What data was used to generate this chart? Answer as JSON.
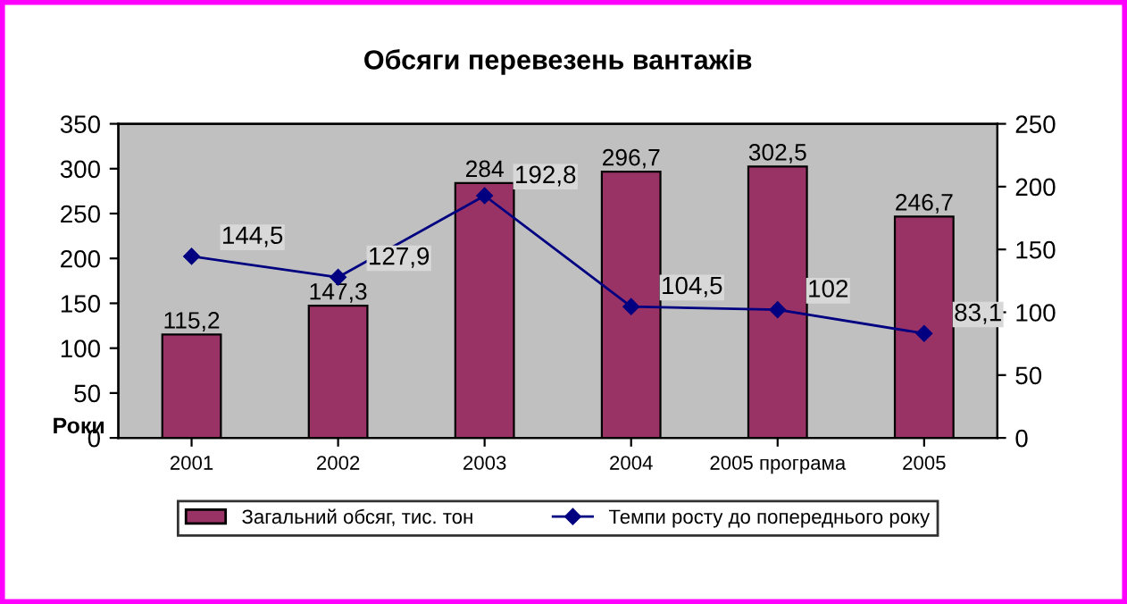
{
  "chart_data": {
    "type": "bar",
    "title": "Обсяги перевезень вантажів",
    "xlabel": "Роки",
    "categories": [
      "2001",
      "2002",
      "2003",
      "2004",
      "2005 програма",
      "2005"
    ],
    "series": [
      {
        "name": "Загальний обсяг, тис. тон",
        "color": "#993366",
        "values": [
          115.2,
          147.3,
          284,
          296.7,
          302.5,
          246.7
        ],
        "value_labels": [
          "115,2",
          "147,3",
          "284",
          "296,7",
          "302,5",
          "246,7"
        ]
      },
      {
        "name": "Темпи росту до попереднього року",
        "type": "line",
        "axis": "y2",
        "color": "#000080",
        "marker": "diamond",
        "values": [
          144.5,
          127.9,
          192.8,
          104.5,
          102,
          83.1
        ],
        "value_labels": [
          "144,5",
          "127,9",
          "192,8",
          "104,5",
          "102",
          "83,1"
        ]
      }
    ],
    "ylim": [
      0,
      350
    ],
    "yticks": [
      0,
      50,
      100,
      150,
      200,
      250,
      300,
      350
    ],
    "y2lim": [
      0,
      250
    ],
    "y2ticks": [
      0,
      50,
      100,
      150,
      200,
      250
    ],
    "grid": false,
    "legend": "bottom"
  }
}
